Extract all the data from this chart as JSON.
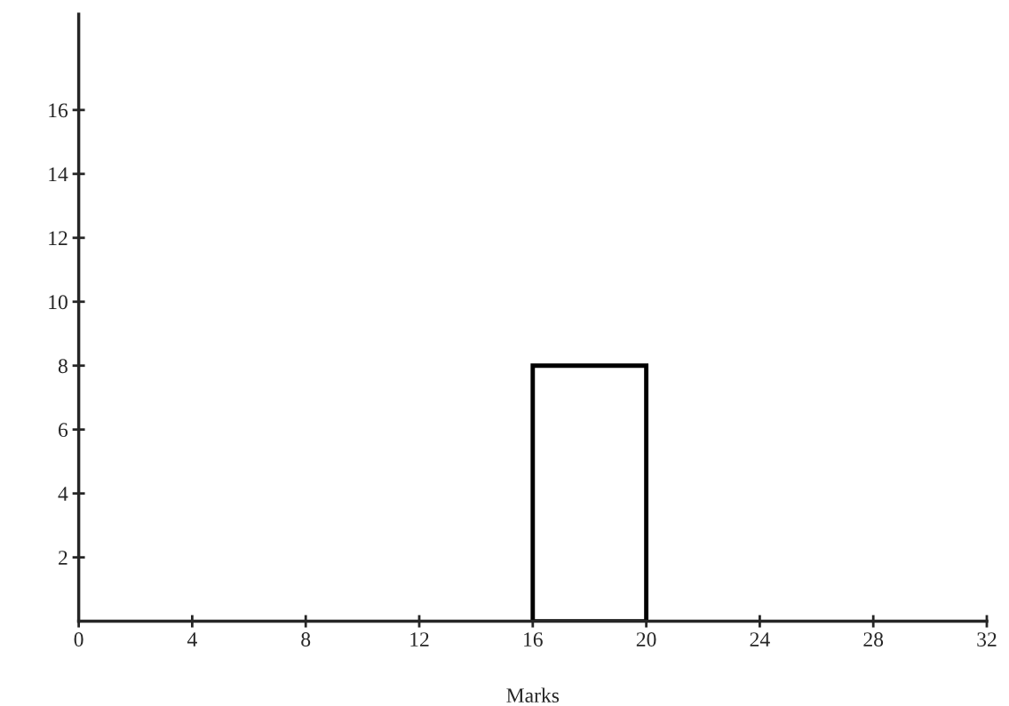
{
  "chart_data": {
    "type": "histogram",
    "xlabel": "Marks",
    "bins": [
      16,
      20
    ],
    "values": [
      8
    ],
    "color": "#ffffff",
    "xlim": [
      0,
      32
    ],
    "xticks": [
      0,
      4,
      8,
      12,
      16,
      20,
      24,
      28,
      32
    ],
    "ylim": [
      0,
      19
    ],
    "yticks": [
      2,
      4,
      6,
      8,
      10,
      12,
      14,
      16
    ],
    "grid": false
  }
}
